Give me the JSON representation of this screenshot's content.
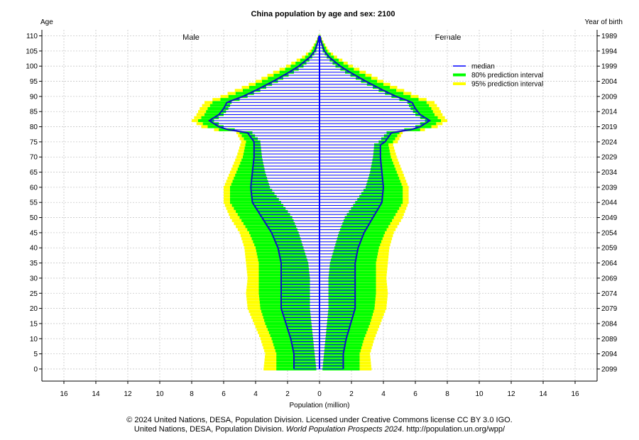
{
  "chart_data": {
    "type": "bar",
    "title": "China population by age and sex: 2100",
    "xlabel": "Population (million)",
    "ylabel_left": "Age",
    "ylabel_right": "Year of birth",
    "xlim": [
      -17,
      17
    ],
    "ylim": [
      -4,
      112
    ],
    "x_ticks": [
      -16,
      -14,
      -12,
      -10,
      -8,
      -6,
      -4,
      -2,
      0,
      2,
      4,
      6,
      8,
      10,
      12,
      14,
      16
    ],
    "x_tick_labels": [
      "16",
      "14",
      "12",
      "10",
      "8",
      "6",
      "4",
      "2",
      "0",
      "2",
      "4",
      "6",
      "8",
      "10",
      "12",
      "14",
      "16"
    ],
    "y_ticks": [
      0,
      5,
      10,
      15,
      20,
      25,
      30,
      35,
      40,
      45,
      50,
      55,
      60,
      65,
      70,
      75,
      80,
      85,
      90,
      95,
      100,
      105,
      110
    ],
    "y_tick_labels": [
      "0",
      "5",
      "10",
      "15",
      "20",
      "25",
      "30",
      "35",
      "40",
      "45",
      "50",
      "55",
      "60",
      "65",
      "70",
      "75",
      "80",
      "85",
      "90",
      "95",
      "100",
      "105",
      "110"
    ],
    "right_tick_labels": [
      "2099",
      "2094",
      "2089",
      "2084",
      "2079",
      "2074",
      "2069",
      "2064",
      "2059",
      "2054",
      "2049",
      "2044",
      "2039",
      "2034",
      "2029",
      "2024",
      "2019",
      "2014",
      "2009",
      "2004",
      "1999",
      "1994",
      "1989"
    ],
    "grid": true,
    "legend_position": "top-right",
    "legend": [
      {
        "label": "median",
        "color": "#0000ff"
      },
      {
        "label": "80% prediction interval",
        "color": "#00ff00"
      },
      {
        "label": "95% prediction interval",
        "color": "#ffff00"
      }
    ],
    "male_label": "Male",
    "female_label": "Female",
    "key_points": {
      "ages": [
        0,
        5,
        10,
        15,
        20,
        25,
        30,
        35,
        40,
        45,
        50,
        55,
        60,
        65,
        70,
        75,
        78,
        79,
        80,
        82,
        84,
        86,
        88,
        90,
        92,
        95,
        98,
        100,
        103,
        105,
        108,
        110
      ],
      "median": [
        1.6,
        1.6,
        1.8,
        2.1,
        2.4,
        2.4,
        2.4,
        2.4,
        2.6,
        3.0,
        3.6,
        4.2,
        4.3,
        4.2,
        4.1,
        4.1,
        4.5,
        5.7,
        6.3,
        6.9,
        6.3,
        6.0,
        5.8,
        4.8,
        4.0,
        2.9,
        1.9,
        1.3,
        0.6,
        0.3,
        0.1,
        0.03
      ],
      "lo80": [
        0.4,
        0.5,
        0.6,
        0.8,
        0.9,
        0.9,
        0.9,
        1.0,
        1.3,
        1.6,
        2.0,
        2.7,
        3.4,
        3.6,
        3.7,
        3.8,
        4.3,
        5.4,
        6.1,
        6.7,
        6.1,
        5.8,
        5.6,
        4.6,
        3.8,
        2.7,
        1.7,
        1.1,
        0.5,
        0.2,
        0.08,
        0.02
      ],
      "hi80": [
        2.7,
        2.7,
        3.0,
        3.4,
        3.7,
        3.8,
        3.8,
        3.8,
        4.0,
        4.4,
        5.0,
        5.6,
        5.6,
        5.2,
        4.8,
        4.6,
        5.0,
        6.3,
        7.0,
        7.6,
        7.2,
        7.0,
        6.7,
        5.7,
        4.8,
        3.6,
        2.5,
        1.8,
        0.9,
        0.5,
        0.2,
        0.05
      ],
      "lo95": [
        0.2,
        0.3,
        0.4,
        0.5,
        0.6,
        0.6,
        0.6,
        0.7,
        1.0,
        1.3,
        1.7,
        2.4,
        3.1,
        3.4,
        3.6,
        3.7,
        4.2,
        5.3,
        6.0,
        6.6,
        6.0,
        5.7,
        5.5,
        4.5,
        3.7,
        2.6,
        1.6,
        1.0,
        0.45,
        0.2,
        0.07,
        0.02
      ],
      "hi95": [
        3.5,
        3.4,
        3.7,
        4.1,
        4.5,
        4.6,
        4.5,
        4.6,
        4.7,
        5.0,
        5.6,
        6.0,
        6.0,
        5.6,
        5.2,
        4.9,
        5.2,
        6.6,
        7.4,
        8.0,
        7.7,
        7.5,
        7.2,
        6.2,
        5.3,
        4.0,
        2.9,
        2.1,
        1.1,
        0.6,
        0.25,
        0.07
      ]
    }
  },
  "footer": {
    "line1": "© 2024 United Nations, DESA, Population Division. Licensed under Creative Commons license CC BY 3.0 IGO.",
    "line2_prefix": "United Nations, DESA, Population Division. ",
    "line2_italic": "World Population Prospects 2024",
    "line2_suffix": ". http://population.un.org/wpp/"
  }
}
